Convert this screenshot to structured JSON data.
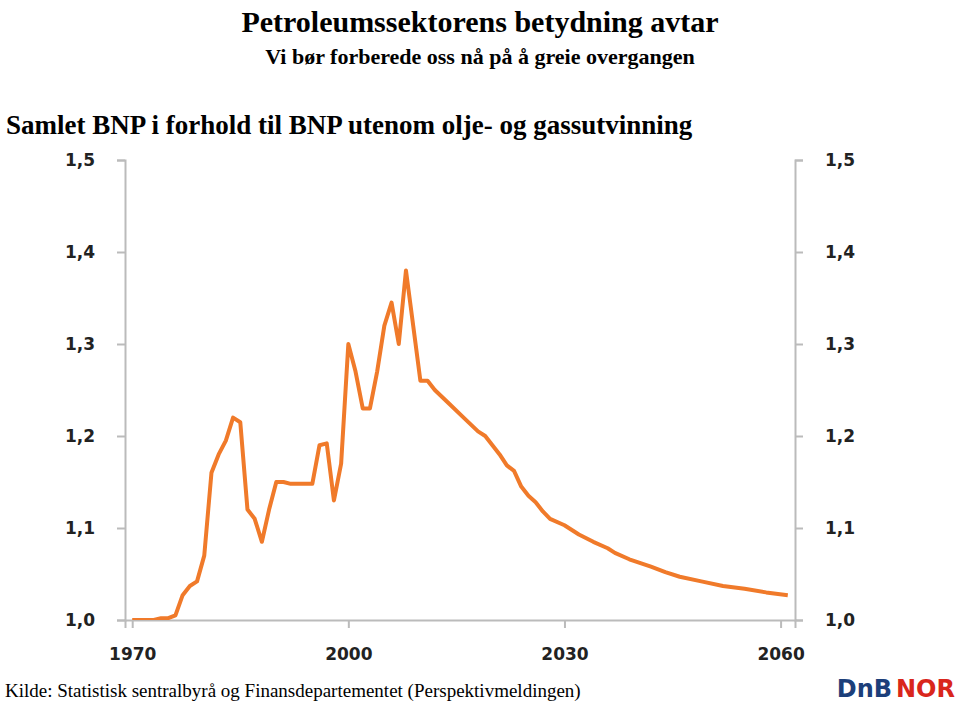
{
  "chart_data": {
    "type": "line",
    "title": "Petroleumssektorens betydning avtar",
    "subtitle": "Vi bør forberede oss nå på å greie overgangen",
    "chart_title": "Samlet BNP i forhold til BNP utenom olje- og gassutvinning",
    "source": "Kilde: Statistisk sentralbyrå og Finansdepartementet (Perspektivmeldingen)",
    "logo": "DnB NOR",
    "color": "#f07a2a",
    "grid": false,
    "x": [
      1970,
      1973,
      1974,
      1975,
      1976,
      1977,
      1978,
      1979,
      1980,
      1981,
      1982,
      1983,
      1984,
      1985,
      1986,
      1987,
      1988,
      1989,
      1990,
      1991,
      1992,
      1993,
      1994,
      1995,
      1996,
      1997,
      1998,
      1999,
      2000,
      2001,
      2002,
      2003,
      2004,
      2005,
      2006,
      2007,
      2008,
      2009,
      2010,
      2011,
      2012,
      2014,
      2016,
      2018,
      2019,
      2020,
      2021,
      2022,
      2023,
      2024,
      2025,
      2026,
      2027,
      2028,
      2030,
      2032,
      2034,
      2036,
      2037,
      2039,
      2042,
      2044,
      2046,
      2049,
      2052,
      2055,
      2058,
      2061
    ],
    "values": [
      1.0,
      1.0,
      1.002,
      1.002,
      1.005,
      1.027,
      1.037,
      1.042,
      1.07,
      1.16,
      1.18,
      1.195,
      1.22,
      1.215,
      1.12,
      1.11,
      1.085,
      1.12,
      1.15,
      1.15,
      1.148,
      1.148,
      1.148,
      1.148,
      1.19,
      1.192,
      1.13,
      1.17,
      1.3,
      1.27,
      1.23,
      1.23,
      1.27,
      1.32,
      1.345,
      1.3,
      1.38,
      1.32,
      1.26,
      1.26,
      1.25,
      1.235,
      1.22,
      1.205,
      1.2,
      1.19,
      1.18,
      1.168,
      1.162,
      1.145,
      1.135,
      1.128,
      1.118,
      1.11,
      1.103,
      1.093,
      1.085,
      1.078,
      1.073,
      1.066,
      1.058,
      1.052,
      1.047,
      1.042,
      1.037,
      1.034,
      1.03,
      1.027
    ],
    "xlim": [
      1969,
      2062
    ],
    "xticks": [
      1970,
      2000,
      2030,
      2060
    ],
    "ylim": [
      1.0,
      1.5
    ],
    "yticks": [
      {
        "value": 1.0,
        "label": "1,0"
      },
      {
        "value": 1.1,
        "label": "1,1"
      },
      {
        "value": 1.2,
        "label": "1,2"
      },
      {
        "value": 1.3,
        "label": "1,3"
      },
      {
        "value": 1.4,
        "label": "1,4"
      },
      {
        "value": 1.5,
        "label": "1,5"
      }
    ]
  }
}
